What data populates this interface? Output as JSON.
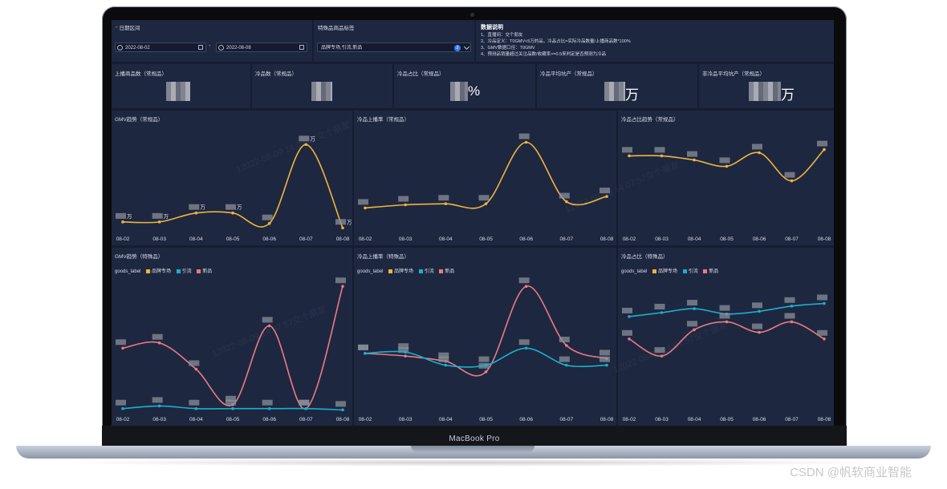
{
  "device": {
    "label": "MacBook Pro"
  },
  "credit": "CSDN @帆软商业智能",
  "filters": {
    "date_label": "日期区间",
    "start_date": "2022-08-02",
    "end_date": "2022-08-08",
    "date_separator": "-",
    "tag_label": "特殊品商品标签",
    "tag_value": "品牌专场,引流,新品",
    "tag_count": "3"
  },
  "notes": {
    "title": "数据说明",
    "lines": [
      "1、直播间：交个朋友",
      "2、冷品定义：T0GMV<5万的品，冷品占比=实际冷品数量/上播商品数*100%",
      "3、GMV数据口径：T0GMV",
      "4、预测品销量超过关注品数/收藏率>=0.5来判定是否预测为冷品"
    ]
  },
  "kpis": [
    {
      "title": "上播商品数（常规品）",
      "unit": ""
    },
    {
      "title": "冷品数（常规品）",
      "unit": ""
    },
    {
      "title": "冷品占比（常规品）",
      "unit": "%"
    },
    {
      "title": "冷品平均坑产（常规品）",
      "unit": "万"
    },
    {
      "title": "非冷品平均坑产（常规品）",
      "unit": "万"
    }
  ],
  "watermark": "12022-08-09 14:07:57交个朋友",
  "legend": {
    "label": "goods_label",
    "items": [
      "品牌专场",
      "引流",
      "新品"
    ]
  },
  "colors": {
    "yellow": "#f0b43c",
    "cyan": "#1bb0cc",
    "pink": "#e97b85",
    "bg": "#161d31",
    "panel": "#1e2740"
  },
  "chart_data": [
    {
      "type": "line",
      "title": "GMV趋势（常规品）",
      "categories": [
        "08-02",
        "08-03",
        "08-04",
        "08-05",
        "08-06",
        "08-07",
        "08-08"
      ],
      "series": [
        {
          "values": [
            6,
            6,
            12,
            12,
            5,
            58,
            2
          ]
        }
      ],
      "point_labels": [
        "万",
        "万",
        "万",
        "万",
        "",
        "万",
        "万"
      ],
      "ylim": [
        0,
        70
      ]
    },
    {
      "type": "line",
      "title": "冷品上播率（常规品）",
      "categories": [
        "08-02",
        "08-03",
        "08-04",
        "08-05",
        "08-06",
        "08-07",
        "08-08"
      ],
      "series": [
        {
          "values": [
            22,
            25,
            26,
            26,
            85,
            28,
            33
          ]
        }
      ],
      "ylim": [
        0,
        100
      ]
    },
    {
      "type": "line",
      "title": "冷品占比趋势（常规品）",
      "categories": [
        "08-02",
        "08-03",
        "08-04",
        "08-05",
        "08-06",
        "08-07",
        "08-08"
      ],
      "series": [
        {
          "values": [
            72,
            72,
            68,
            62,
            75,
            48,
            78
          ]
        }
      ],
      "ylim": [
        0,
        100
      ]
    },
    {
      "type": "line",
      "title": "GMV趋势（特殊品）",
      "categories": [
        "08-02",
        "08-03",
        "08-04",
        "08-05",
        "08-06",
        "08-07",
        "08-08"
      ],
      "series": [
        {
          "name": "新品",
          "values": [
            48,
            52,
            32,
            5,
            65,
            2,
            95
          ]
        },
        {
          "name": "引流",
          "values": [
            2,
            4,
            2,
            2,
            2,
            2,
            1
          ]
        }
      ],
      "ylim": [
        0,
        100
      ]
    },
    {
      "type": "line",
      "title": "冷品上播率（特殊品）",
      "categories": [
        "08-02",
        "08-03",
        "08-04",
        "08-05",
        "08-06",
        "08-07",
        "08-08"
      ],
      "series": [
        {
          "name": "新品",
          "values": [
            44,
            42,
            38,
            30,
            95,
            50,
            40
          ]
        },
        {
          "name": "引流",
          "values": [
            44,
            45,
            35,
            35,
            48,
            35,
            35
          ]
        }
      ],
      "ylim": [
        0,
        100
      ]
    },
    {
      "type": "line",
      "title": "冷品占比（特殊品）",
      "categories": [
        "08-02",
        "08-03",
        "08-04",
        "08-05",
        "08-06",
        "08-07",
        "08-08"
      ],
      "series": [
        {
          "name": "引流",
          "values": [
            72,
            75,
            78,
            74,
            76,
            80,
            82
          ]
        },
        {
          "name": "新品",
          "values": [
            55,
            42,
            62,
            68,
            60,
            68,
            55
          ]
        }
      ],
      "ylim": [
        0,
        100
      ]
    }
  ]
}
